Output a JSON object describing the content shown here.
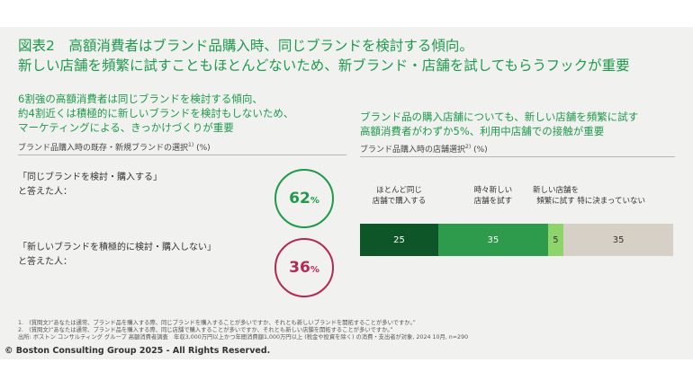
{
  "title": {
    "line1": "図表2　高額消費者はブランド品購入時、同じブランドを検討する傾向。",
    "line2": "新しい店舗を頻繁に試すこともほとんどないため、新ブランド・店舗を試してもらうフックが重要"
  },
  "left": {
    "lead": [
      "6割強の高額消費者は同じブランドを検討する傾向、",
      "約4割近くは積極的に新しいブランドを検討もしないため、",
      "マーケティングによる、きっかけづくりが重要"
    ],
    "subtitle": "ブランド品購入時の既存・新規ブランドの選択",
    "subtitle_note": "1)",
    "subtitle_unit": "(%)",
    "q1": [
      "「同じブランドを検討・購入する」",
      "と答えた人："
    ],
    "q2": [
      "「新しいブランドを積極的に検討・購入しない」",
      "と答えた人："
    ],
    "v1": "62",
    "v2": "36",
    "pct": "%",
    "color1": "#1f9a4b",
    "color2": "#b02a52"
  },
  "right": {
    "lead": [
      "ブランド品の購入店舗についても、新しい店舗を頻繁に試す",
      "高額消費者がわずか5%、利用中店舗での接触が重要"
    ],
    "subtitle": "ブランド品購入時の店舗選択",
    "subtitle_note": "2)",
    "subtitle_unit": "(%)"
  },
  "chart_data": [
    {
      "type": "bar",
      "title": "ブランド品購入時の既存・新規ブランドの選択 (%)",
      "categories": [
        "「同じブランドを検討・購入する」と答えた人",
        "「新しいブランドを積極的に検討・購入しない」と答えた人"
      ],
      "values": [
        62,
        36
      ]
    },
    {
      "type": "bar",
      "orientation": "horizontal-stacked",
      "title": "ブランド品購入時の店舗選択 (%)",
      "categories": [
        "ほとんど同じ店舗で購入する",
        "時々新しい店舗を試す",
        "新しい店舗を頻繁に試す",
        "特に決まっていない"
      ],
      "labels": [
        [
          "ほとんど同じ",
          "店舗で購入する"
        ],
        [
          "時々新しい",
          "店舗を試す"
        ],
        [
          "新しい店舗を",
          "頻繁に試す"
        ],
        [
          "特に決まっていない"
        ]
      ],
      "values": [
        25,
        35,
        5,
        35
      ],
      "colors": [
        "#0e5528",
        "#2e9a4c",
        "#8fd46a",
        "#d6d0c6"
      ],
      "text_colors": [
        "#ffffff",
        "#ffffff",
        "#333333",
        "#333333"
      ]
    }
  ],
  "footnotes": [
    "1.　(質問文)“あなたは通常、ブランド品を購入する際、同じブランドを購入することが多いですか、それとも新しいブランドを開拓することが多いですか。”",
    "2.　(質問文)“あなたは通常、ブランド品を購入する際、同じ店舗で購入することが多いですか、それとも新しい店舗を開拓することが多いですか。”",
    "出所: ボストン コンサルティング グループ 高額消費者調査　年収3,000万円以上かつ年間消費額1,000万円以上 (税金や投資を除く) の消費・支出者が対象, 2024 10月, n=290"
  ],
  "copyright": "© Boston Consulting Group 2025 - All Rights Reserved."
}
